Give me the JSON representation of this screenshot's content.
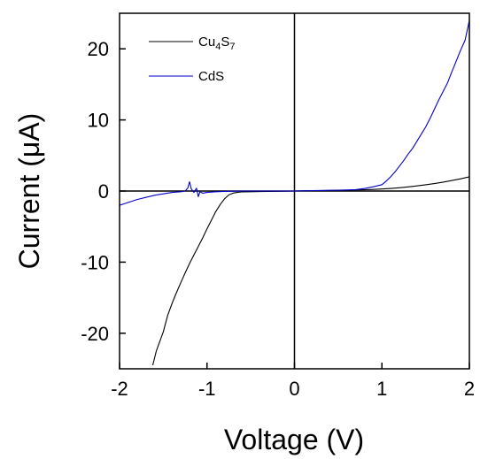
{
  "chart_data": {
    "type": "line",
    "xlabel": "Voltage (V)",
    "ylabel": "Current (μA)",
    "xlim": [
      -2,
      2
    ],
    "ylim": [
      -25,
      25
    ],
    "xticks": [
      -2,
      -1,
      0,
      1,
      2
    ],
    "yticks": [
      -20,
      -10,
      0,
      10,
      20
    ],
    "grid": false,
    "zero_lines": true,
    "legend_position": "top-left",
    "series": [
      {
        "name": "Cu4S7",
        "name_base": "Cu",
        "name_sub1": "4",
        "name_mid": "S",
        "name_sub2": "7",
        "color": "#000000",
        "x": [
          -1.62,
          -1.58,
          -1.55,
          -1.5,
          -1.45,
          -1.4,
          -1.35,
          -1.3,
          -1.25,
          -1.2,
          -1.15,
          -1.1,
          -1.05,
          -1.0,
          -0.95,
          -0.9,
          -0.85,
          -0.8,
          -0.75,
          -0.7,
          -0.65,
          -0.6,
          -0.5,
          -0.4,
          -0.3,
          -0.2,
          -0.1,
          0.0,
          0.1,
          0.2,
          0.3,
          0.4,
          0.5,
          0.6,
          0.7,
          0.8,
          0.9,
          1.0,
          1.1,
          1.2,
          1.3,
          1.4,
          1.5,
          1.6,
          1.7,
          1.8,
          1.9,
          2.0
        ],
        "y": [
          -24.5,
          -22.5,
          -21.5,
          -19.8,
          -17.5,
          -15.8,
          -14.3,
          -12.9,
          -11.5,
          -10.2,
          -9.0,
          -7.8,
          -6.6,
          -5.3,
          -4.1,
          -2.9,
          -1.9,
          -1.1,
          -0.55,
          -0.28,
          -0.18,
          -0.13,
          -0.1,
          -0.08,
          -0.06,
          -0.04,
          -0.02,
          0.0,
          0.02,
          0.04,
          0.06,
          0.08,
          0.1,
          0.12,
          0.15,
          0.18,
          0.22,
          0.28,
          0.36,
          0.46,
          0.58,
          0.72,
          0.88,
          1.05,
          1.25,
          1.48,
          1.72,
          2.0
        ]
      },
      {
        "name": "CdS",
        "color": "#0000cc",
        "x": [
          -2.0,
          -1.9,
          -1.8,
          -1.7,
          -1.6,
          -1.5,
          -1.4,
          -1.3,
          -1.25,
          -1.22,
          -1.2,
          -1.18,
          -1.15,
          -1.12,
          -1.1,
          -1.08,
          -1.05,
          -1.0,
          -0.9,
          -0.8,
          -0.6,
          -0.4,
          -0.2,
          0.0,
          0.2,
          0.4,
          0.6,
          0.7,
          0.8,
          0.9,
          1.0,
          1.05,
          1.1,
          1.15,
          1.2,
          1.25,
          1.3,
          1.35,
          1.4,
          1.45,
          1.5,
          1.55,
          1.6,
          1.65,
          1.7,
          1.75,
          1.8,
          1.85,
          1.9,
          1.95,
          2.0
        ],
        "y": [
          -2.0,
          -1.6,
          -1.2,
          -0.9,
          -0.6,
          -0.4,
          -0.2,
          -0.1,
          0.0,
          0.4,
          1.3,
          0.3,
          -0.2,
          0.4,
          -0.8,
          -0.1,
          -0.3,
          -0.2,
          -0.1,
          -0.05,
          0.0,
          0.0,
          0.0,
          0.0,
          0.05,
          0.1,
          0.15,
          0.2,
          0.35,
          0.6,
          0.9,
          1.4,
          2.0,
          2.7,
          3.5,
          4.3,
          5.2,
          6.0,
          7.0,
          8.0,
          9.0,
          10.2,
          11.5,
          12.8,
          14.0,
          15.2,
          16.8,
          18.3,
          19.8,
          21.2,
          24.0
        ]
      }
    ]
  }
}
